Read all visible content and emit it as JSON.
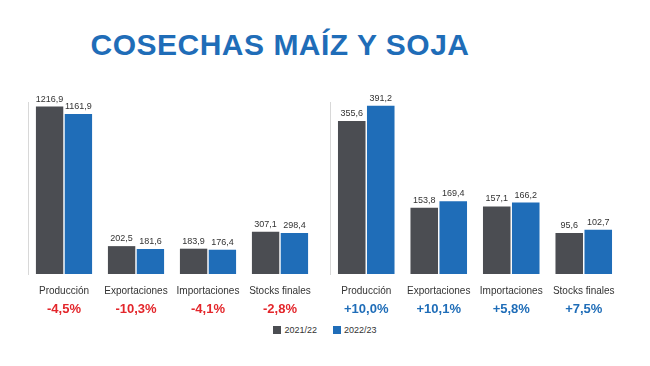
{
  "title": "COSECHAS MAÍZ Y SOJA",
  "chart_data": [
    {
      "type": "bar",
      "categories": [
        "Producción",
        "Exportaciones",
        "Importaciones",
        "Stocks finales"
      ],
      "series": [
        {
          "name": "2021/22",
          "color": "#4b4d52",
          "values": [
            1216.9,
            202.5,
            183.9,
            307.1
          ],
          "value_labels": [
            "1216,9",
            "202,5",
            "183,9",
            "307,1"
          ]
        },
        {
          "name": "2022/23",
          "color": "#1f6db8",
          "values": [
            1161.9,
            181.6,
            176.4,
            298.4
          ],
          "value_labels": [
            "1161,9",
            "181,6",
            "176,4",
            "298,4"
          ]
        }
      ],
      "changes": [
        -4.5,
        -10.3,
        -4.1,
        -2.8
      ],
      "change_labels": [
        "-4,5%",
        "-10,3%",
        "-4,1%",
        "-2,8%"
      ],
      "ylim": [
        0,
        1250
      ],
      "grid": false,
      "tick_labels": "x",
      "data_labels": true,
      "legend": "bottom"
    },
    {
      "type": "bar",
      "categories": [
        "Producción",
        "Exportaciones",
        "Importaciones",
        "Stocks finales"
      ],
      "series": [
        {
          "name": "2021/22",
          "color": "#4b4d52",
          "values": [
            355.6,
            153.8,
            157.1,
            95.6
          ],
          "value_labels": [
            "355,6",
            "153,8",
            "157,1",
            "95,6"
          ]
        },
        {
          "name": "2022/23",
          "color": "#1f6db8",
          "values": [
            391.2,
            169.4,
            166.2,
            102.7
          ],
          "value_labels": [
            "391,2",
            "169,4",
            "166,2",
            "102,7"
          ]
        }
      ],
      "changes": [
        10.0,
        10.1,
        5.8,
        7.5
      ],
      "change_labels": [
        "+10,0%",
        "+10,1%",
        "+5,8%",
        "+7,5%"
      ],
      "ylim": [
        0,
        400
      ],
      "grid": false,
      "tick_labels": "x",
      "data_labels": true,
      "legend": "bottom"
    }
  ]
}
